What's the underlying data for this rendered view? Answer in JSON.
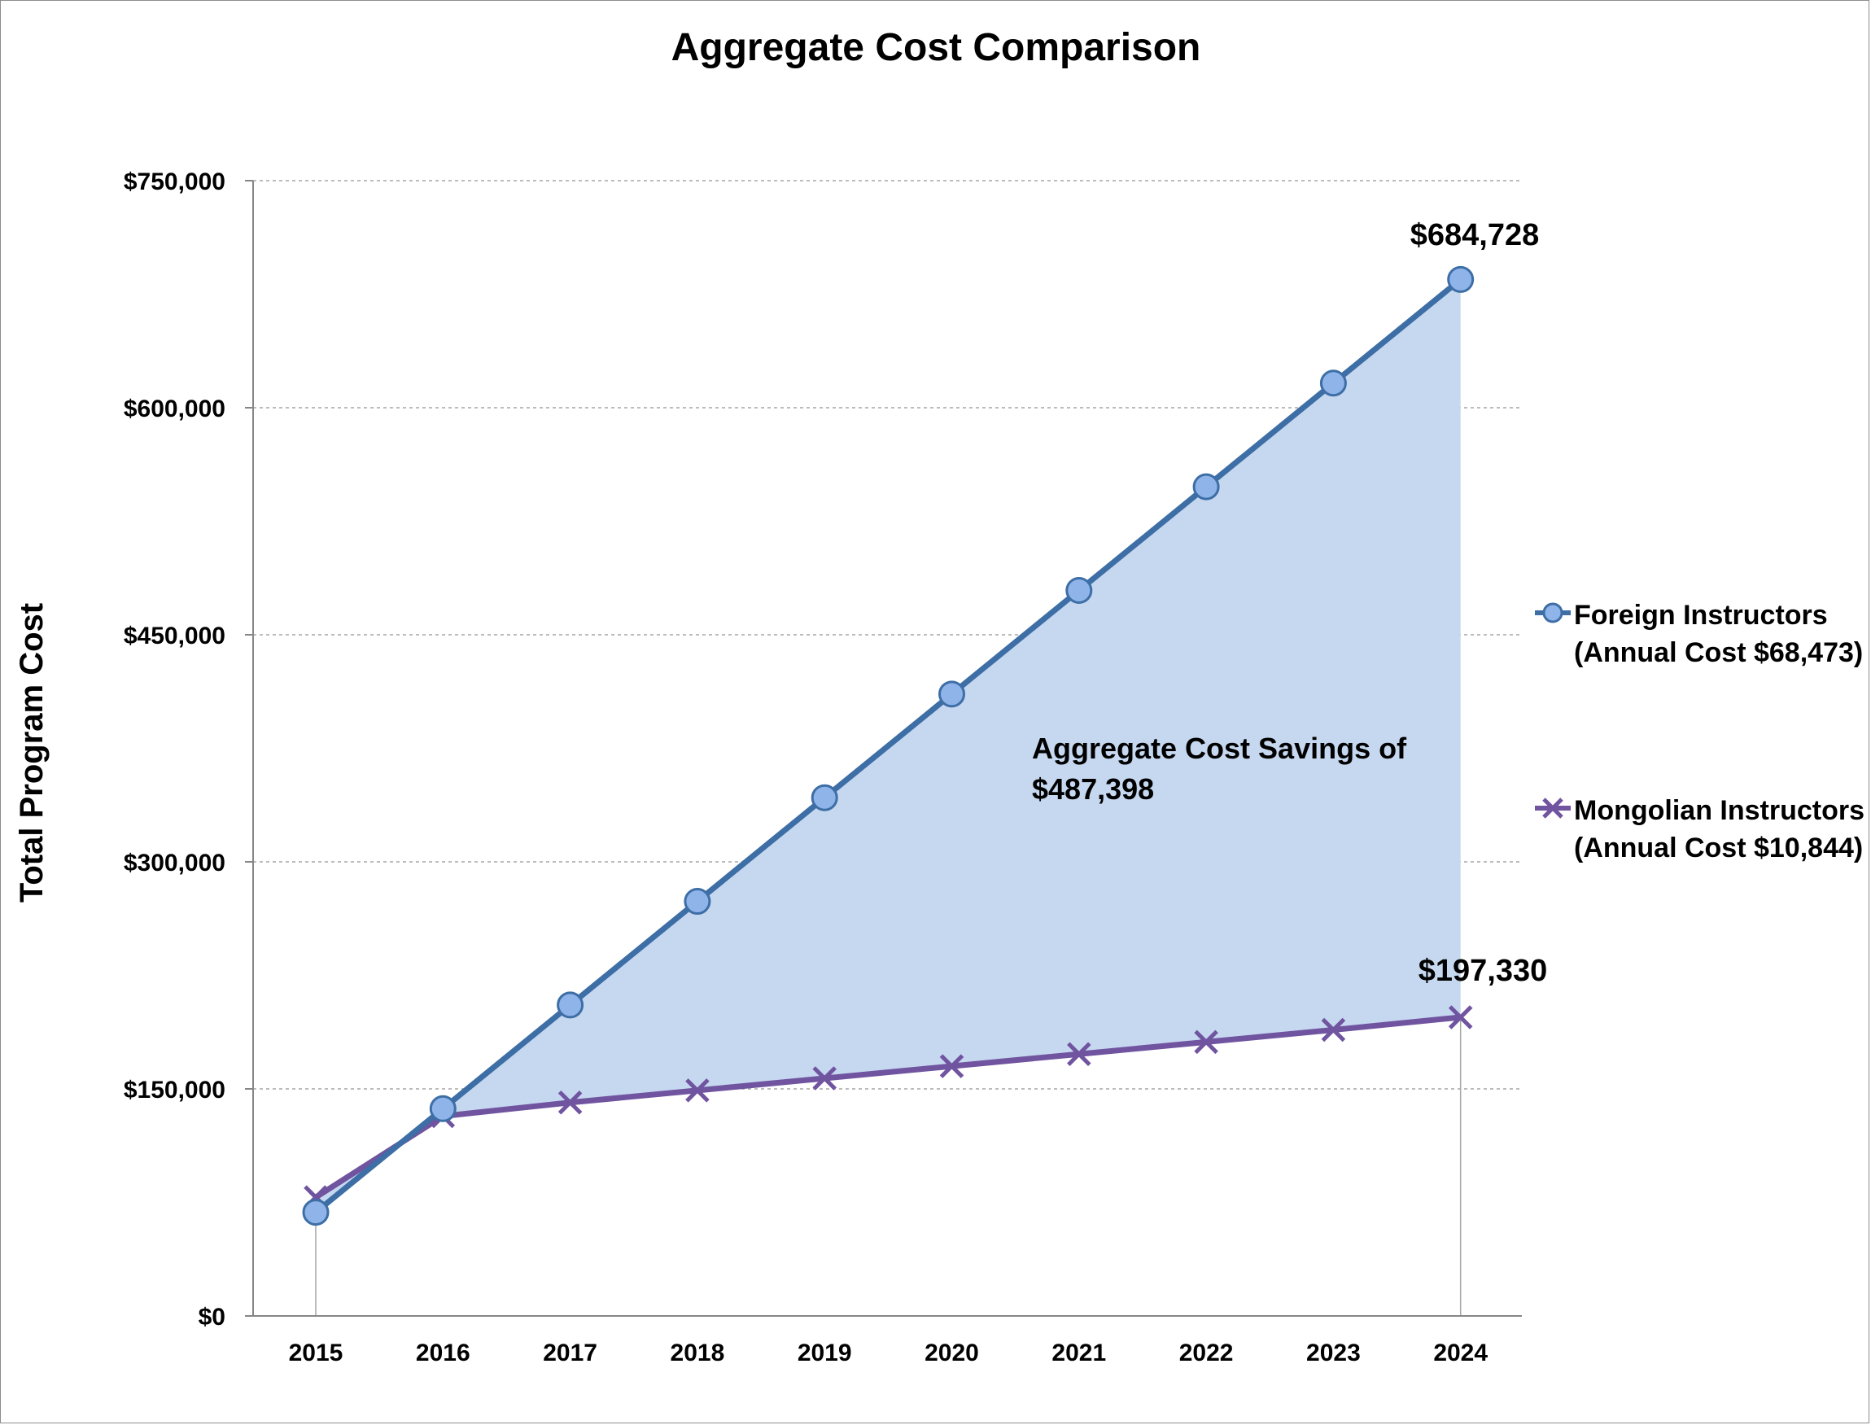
{
  "chart_data": {
    "type": "line",
    "title": "Aggregate Cost Comparison",
    "ylabel": "Total Program Cost",
    "xlabel": "",
    "categories": [
      "2015",
      "2016",
      "2017",
      "2018",
      "2019",
      "2020",
      "2021",
      "2022",
      "2023",
      "2024"
    ],
    "ylim": [
      0,
      750000
    ],
    "yticks": [
      0,
      150000,
      300000,
      450000,
      600000,
      750000
    ],
    "ytick_labels": [
      "$0",
      "$150,000",
      "$300,000",
      "$450,000",
      "$600,000",
      "$750,000"
    ],
    "grid": true,
    "legend_position": "right",
    "series": [
      {
        "name": "Foreign Instructors",
        "name_line2": "(Annual Cost $68,473)",
        "color": "#3d6ea5",
        "marker": "circle",
        "marker_color": "#8fb4ea",
        "values": [
          68473,
          136946,
          205419,
          273892,
          342365,
          410838,
          479311,
          547784,
          616257,
          684728
        ]
      },
      {
        "name": "Mongolian Instructors",
        "name_line2": "(Annual Cost $10,844)",
        "color": "#7054a0",
        "marker": "x",
        "values": [
          78410,
          132000,
          141000,
          149000,
          157000,
          165000,
          173000,
          181000,
          189000,
          197330
        ]
      }
    ],
    "fill_between": {
      "color": "#c6d8f0"
    },
    "annotations": {
      "savings_line1": "Aggregate Cost Savings of",
      "savings_line2": "$487,398",
      "foreign_end_label": "$684,728",
      "mongolian_end_label": "$197,330"
    }
  }
}
